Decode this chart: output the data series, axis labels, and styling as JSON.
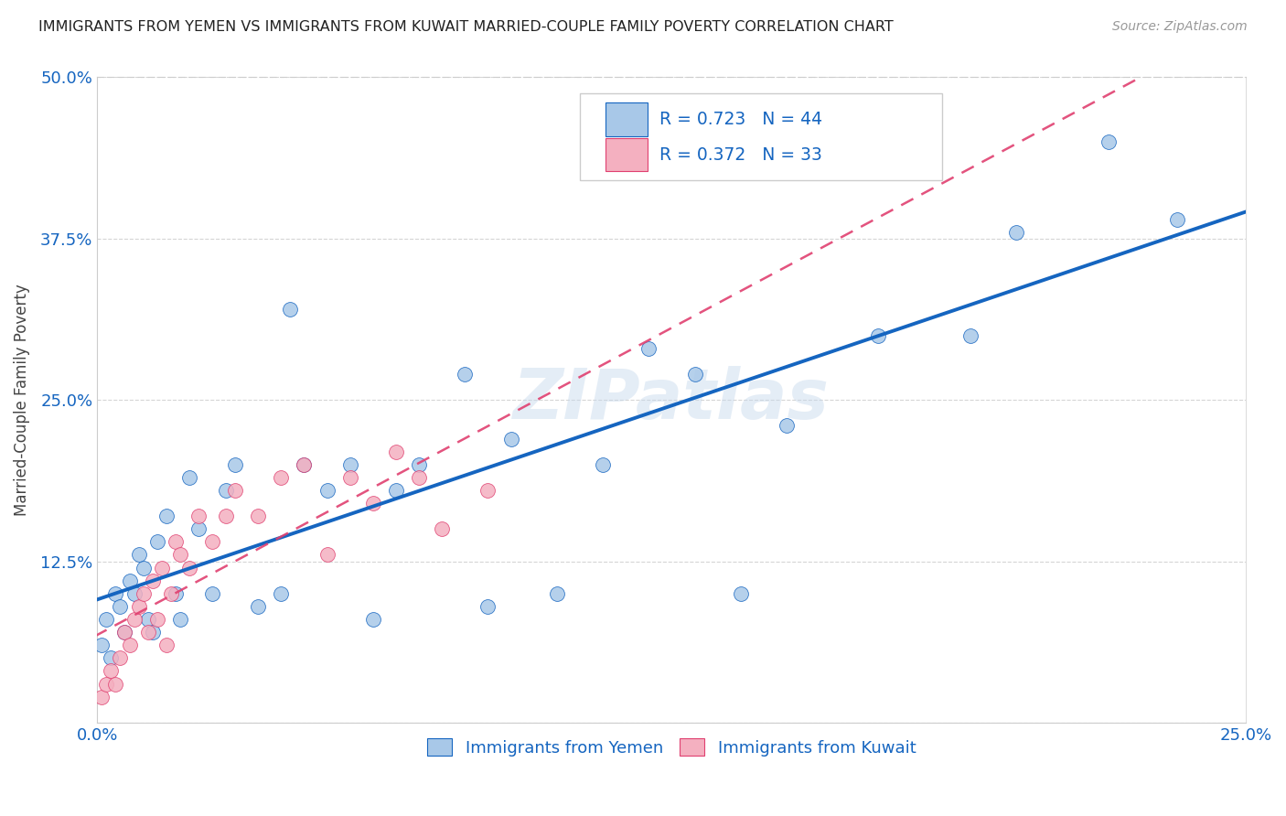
{
  "title": "IMMIGRANTS FROM YEMEN VS IMMIGRANTS FROM KUWAIT MARRIED-COUPLE FAMILY POVERTY CORRELATION CHART",
  "source": "Source: ZipAtlas.com",
  "ylabel": "Married-Couple Family Poverty",
  "xlim": [
    0.0,
    0.25
  ],
  "ylim": [
    0.0,
    0.5
  ],
  "color_yemen": "#a8c8e8",
  "color_kuwait": "#f4b0c0",
  "line_color_yemen": "#1565c0",
  "line_color_kuwait": "#e04070",
  "watermark": "ZIPatlas",
  "yemen_R": 0.723,
  "yemen_N": 44,
  "kuwait_R": 0.372,
  "kuwait_N": 33,
  "legend_label_yemen": "Immigrants from Yemen",
  "legend_label_kuwait": "Immigrants from Kuwait",
  "yemen_x": [
    0.001,
    0.002,
    0.003,
    0.004,
    0.005,
    0.006,
    0.007,
    0.008,
    0.009,
    0.01,
    0.011,
    0.012,
    0.013,
    0.015,
    0.017,
    0.018,
    0.02,
    0.022,
    0.025,
    0.028,
    0.03,
    0.035,
    0.04,
    0.042,
    0.045,
    0.05,
    0.055,
    0.06,
    0.065,
    0.07,
    0.08,
    0.085,
    0.09,
    0.1,
    0.11,
    0.12,
    0.13,
    0.14,
    0.15,
    0.17,
    0.19,
    0.2,
    0.22,
    0.235
  ],
  "yemen_y": [
    0.06,
    0.08,
    0.05,
    0.1,
    0.09,
    0.07,
    0.11,
    0.1,
    0.13,
    0.12,
    0.08,
    0.07,
    0.14,
    0.16,
    0.1,
    0.08,
    0.19,
    0.15,
    0.1,
    0.18,
    0.2,
    0.09,
    0.1,
    0.32,
    0.2,
    0.18,
    0.2,
    0.08,
    0.18,
    0.2,
    0.27,
    0.09,
    0.22,
    0.1,
    0.2,
    0.29,
    0.27,
    0.1,
    0.23,
    0.3,
    0.3,
    0.38,
    0.45,
    0.39
  ],
  "kuwait_x": [
    0.001,
    0.002,
    0.003,
    0.004,
    0.005,
    0.006,
    0.007,
    0.008,
    0.009,
    0.01,
    0.011,
    0.012,
    0.013,
    0.014,
    0.015,
    0.016,
    0.017,
    0.018,
    0.02,
    0.022,
    0.025,
    0.028,
    0.03,
    0.035,
    0.04,
    0.045,
    0.05,
    0.055,
    0.06,
    0.065,
    0.07,
    0.075,
    0.085
  ],
  "kuwait_y": [
    0.02,
    0.03,
    0.04,
    0.03,
    0.05,
    0.07,
    0.06,
    0.08,
    0.09,
    0.1,
    0.07,
    0.11,
    0.08,
    0.12,
    0.06,
    0.1,
    0.14,
    0.13,
    0.12,
    0.16,
    0.14,
    0.16,
    0.18,
    0.16,
    0.19,
    0.2,
    0.13,
    0.19,
    0.17,
    0.21,
    0.19,
    0.15,
    0.18
  ]
}
